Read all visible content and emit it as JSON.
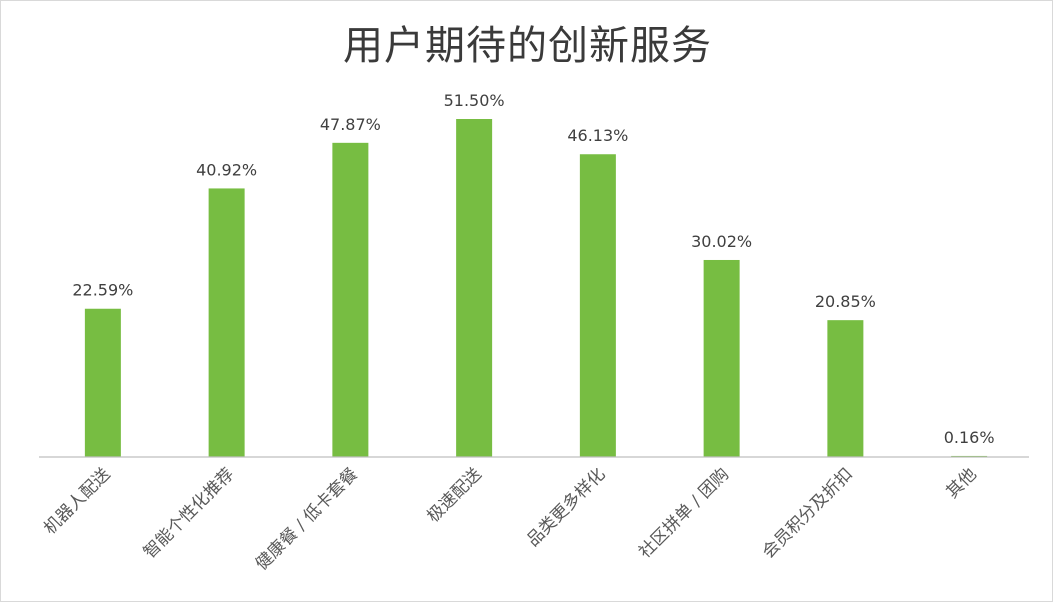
{
  "chart_data": {
    "type": "bar",
    "title": "用户期待的创新服务",
    "categories": [
      "机器人配送",
      "智能个性化推荐",
      "健康餐 / 低卡套餐",
      "极速配送",
      "品类更多样化",
      "社区拼单 / 团购",
      "会员积分及折扣",
      "其他"
    ],
    "values": [
      22.59,
      40.92,
      47.87,
      51.5,
      46.13,
      30.02,
      20.85,
      0.16
    ],
    "value_labels": [
      "22.59%",
      "40.92%",
      "47.87%",
      "51.50%",
      "46.13%",
      "30.02%",
      "20.85%",
      "0.16%"
    ],
    "xlabel": "",
    "ylabel": "",
    "ylim": [
      0,
      55
    ],
    "grid": false,
    "legend": "none",
    "bar_color": "#77bd42",
    "axis_color": "#bfbfbf"
  }
}
